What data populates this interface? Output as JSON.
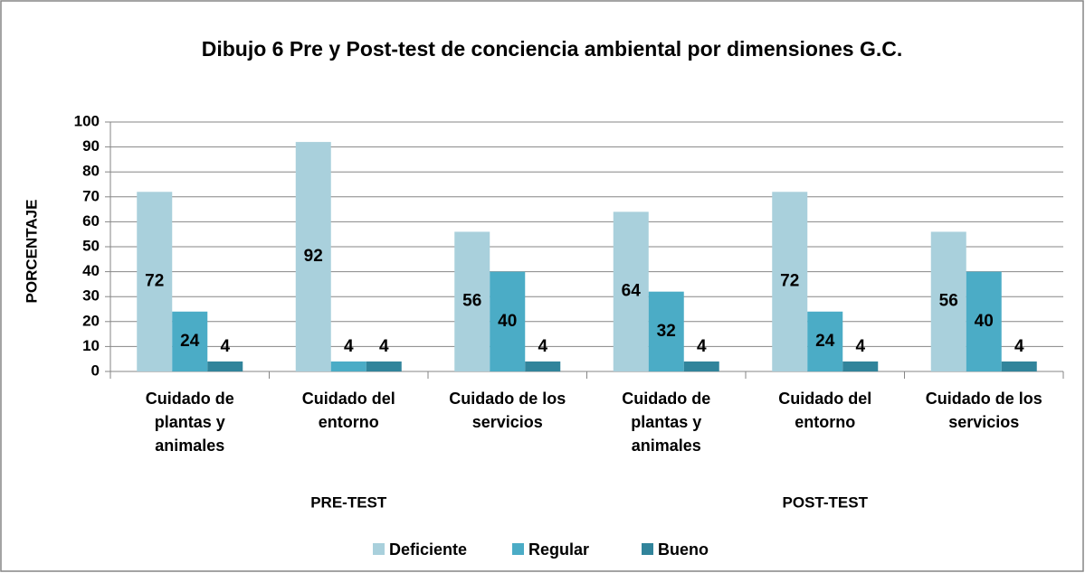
{
  "chart_data": {
    "type": "bar",
    "title": "Dibujo 6 Pre y Post-test de conciencia ambiental por dimensiones G.C.",
    "ylabel": "PORCENTAJE",
    "categories": [
      "Cuidado de plantas y animales",
      "Cuidado del entorno",
      "Cuidado de los servicios",
      "Cuidado de plantas y animales",
      "Cuidado del entorno",
      "Cuidado de los servicios"
    ],
    "groups": [
      "PRE-TEST",
      "POST-TEST"
    ],
    "series": [
      {
        "name": "Deficiente",
        "color": "#a9d0dc",
        "values": [
          72,
          92,
          56,
          64,
          72,
          56
        ]
      },
      {
        "name": "Regular",
        "color": "#4bacc6",
        "values": [
          24,
          4,
          40,
          32,
          24,
          40
        ]
      },
      {
        "name": "Bueno",
        "color": "#31849b",
        "values": [
          4,
          4,
          4,
          4,
          4,
          4
        ]
      }
    ],
    "ylim": [
      0,
      100
    ],
    "yticks": [
      0,
      10,
      20,
      30,
      40,
      50,
      60,
      70,
      80,
      90,
      100
    ],
    "grid": true,
    "legend": "bottom"
  }
}
